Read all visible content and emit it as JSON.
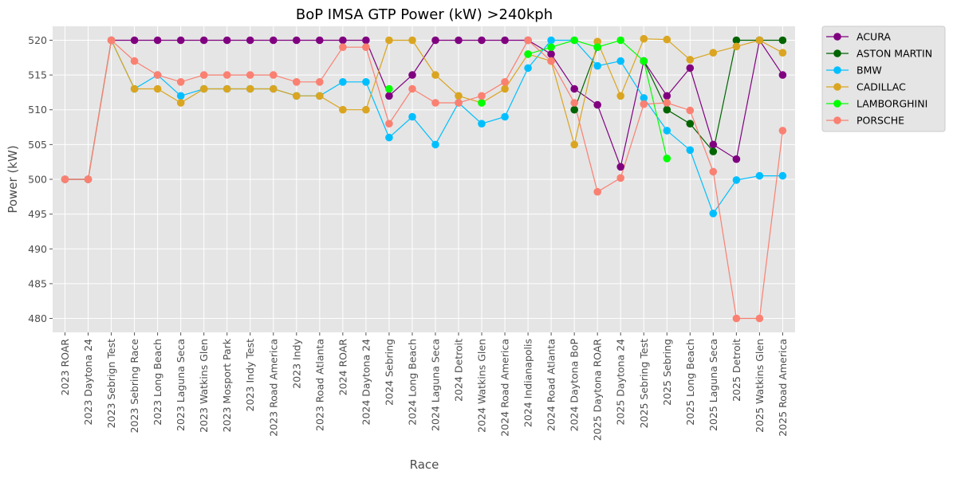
{
  "chart_data": {
    "type": "line",
    "title": "BoP IMSA GTP Power (kW) >240kph",
    "xlabel": "Race",
    "ylabel": "Power (kW)",
    "ylim": [
      478,
      522
    ],
    "yticks": [
      480,
      485,
      490,
      495,
      500,
      505,
      510,
      515,
      520
    ],
    "grid": true,
    "legend_position": "outside-top-right",
    "categories": [
      "2023 ROAR",
      "2023 Daytona 24",
      "2023 Sebrign Test",
      "2023 Sebring Race",
      "2023 Long Beach",
      "2023 Laguna Seca",
      "2023 Watkins Glen",
      "2023 Mosport Park",
      "2023 Indy Test",
      "2023 Road America",
      "2023 Indy",
      "2023 Road Atlanta",
      "2024 ROAR",
      "2024 Daytona 24",
      "2024 Sebring",
      "2024 Long Beach",
      "2024 Laguna Seca",
      "2024 Detroit",
      "2024 Watkins Glen",
      "2024 Road America",
      "2024 Indianapolis",
      "2024 Road Atlanta",
      "2024 Daytona BoP",
      "2025 Daytona ROAR",
      "2025 Daytona 24",
      "2025 Sebring Test",
      "2025 Sebring",
      "2025 Long Beach",
      "2025 Laguna Seca",
      "2025 Detroit",
      "2025 Watkins Glen",
      "2025 Road America"
    ],
    "series": [
      {
        "name": "ACURA",
        "color": "#800080",
        "values": [
          500,
          500,
          520,
          520,
          520,
          520,
          520,
          520,
          520,
          520,
          520,
          520,
          520,
          520,
          512,
          515,
          520,
          520,
          520,
          520,
          520,
          518,
          513,
          510.7,
          501.8,
          517,
          512,
          516,
          505,
          502.9,
          520,
          515
        ]
      },
      {
        "name": "ASTON MARTIN",
        "color": "#006400",
        "values": [
          null,
          null,
          null,
          null,
          null,
          null,
          null,
          null,
          null,
          null,
          null,
          null,
          null,
          null,
          null,
          null,
          null,
          null,
          null,
          null,
          null,
          null,
          510,
          519,
          null,
          517,
          510,
          508,
          504,
          520,
          520,
          520
        ]
      },
      {
        "name": "BMW",
        "color": "#00bfff",
        "values": [
          500,
          500,
          520,
          513,
          515,
          512,
          513,
          513,
          513,
          513,
          512,
          512,
          514,
          514,
          506,
          509,
          505,
          511,
          508,
          509,
          516,
          520,
          520,
          516.3,
          517,
          511.7,
          507,
          504.2,
          495.1,
          499.9,
          500.5,
          500.5
        ]
      },
      {
        "name": "CADILLAC",
        "color": "#daa520",
        "values": [
          500,
          500,
          520,
          513,
          513,
          511,
          513,
          513,
          513,
          513,
          512,
          512,
          510,
          510,
          520,
          520,
          515,
          512,
          511,
          513,
          518,
          517,
          505,
          519.8,
          512,
          520.2,
          520.1,
          517.2,
          518.2,
          519.1,
          520,
          518.2
        ]
      },
      {
        "name": "LAMBORGHINI",
        "color": "#00ff00",
        "values": [
          null,
          null,
          null,
          null,
          null,
          null,
          null,
          null,
          null,
          null,
          null,
          null,
          null,
          null,
          513,
          null,
          null,
          null,
          511,
          null,
          518,
          519,
          520,
          519,
          520,
          517,
          503,
          null,
          null,
          null,
          null,
          null
        ]
      },
      {
        "name": "PORSCHE",
        "color": "#fa8072",
        "values": [
          500,
          500,
          520,
          517,
          515,
          514,
          515,
          515,
          515,
          515,
          514,
          514,
          519,
          519,
          508,
          513,
          511,
          511,
          512,
          514,
          520,
          517,
          511,
          498.2,
          500.2,
          510.8,
          511,
          509.9,
          501.1,
          480,
          480,
          507
        ]
      }
    ]
  }
}
